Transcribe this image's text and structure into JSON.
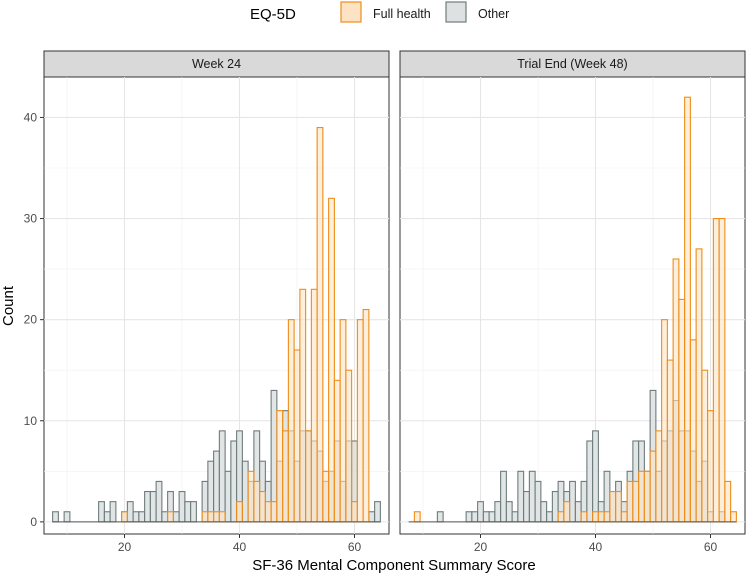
{
  "chart_data": {
    "type": "histogram",
    "xlabel": "SF-36 Mental Component Summary Score",
    "ylabel": "Count",
    "xlim": [
      6,
      66
    ],
    "ylim": [
      -1.2,
      44
    ],
    "xticks": [
      20,
      40,
      60
    ],
    "yticks": [
      0,
      10,
      20,
      30,
      40
    ],
    "bin_width": 1,
    "legend": {
      "title": "EQ-5D",
      "position": "top",
      "entries": [
        {
          "label": "Full health",
          "fill": "#fde3c4",
          "stroke": "#ee8e1a"
        },
        {
          "label": "Other",
          "fill": "#dde1e1",
          "stroke": "#6e7c7c"
        }
      ]
    },
    "facets": [
      {
        "title": "Week 24",
        "series": [
          {
            "name": "Full health",
            "bins": [
              8,
              9,
              10,
              11,
              12,
              13,
              14,
              15,
              16,
              17,
              18,
              19,
              20,
              21,
              22,
              23,
              24,
              25,
              26,
              27,
              28,
              29,
              30,
              31,
              32,
              33,
              34,
              35,
              36,
              37,
              38,
              39,
              40,
              41,
              42,
              43,
              44,
              45,
              46,
              47,
              48,
              49,
              50,
              51,
              52,
              53,
              54,
              55,
              56,
              57,
              58,
              59,
              60,
              61,
              62,
              63,
              64
            ],
            "values": [
              0,
              0,
              0,
              0,
              0,
              0,
              0,
              0,
              0,
              0,
              0,
              0,
              1,
              0,
              0,
              0,
              0,
              0,
              0,
              0,
              1,
              0,
              0,
              0,
              0,
              0,
              1,
              1,
              1,
              1,
              0,
              0,
              2,
              0,
              5,
              4,
              3,
              2,
              2,
              11,
              9,
              20,
              17,
              23,
              9,
              23,
              39,
              5,
              32,
              14,
              20,
              15,
              2,
              20,
              21,
              0,
              0
            ]
          },
          {
            "name": "Other",
            "bins": [
              8,
              9,
              10,
              11,
              12,
              13,
              14,
              15,
              16,
              17,
              18,
              19,
              20,
              21,
              22,
              23,
              24,
              25,
              26,
              27,
              28,
              29,
              30,
              31,
              32,
              33,
              34,
              35,
              36,
              37,
              38,
              39,
              40,
              41,
              42,
              43,
              44,
              45,
              46,
              47,
              48,
              49,
              50,
              51,
              52,
              53,
              54,
              55,
              56,
              57,
              58,
              59,
              60,
              61,
              62,
              63,
              64
            ],
            "values": [
              1,
              0,
              1,
              0,
              0,
              0,
              0,
              0,
              2,
              1,
              2,
              0,
              1,
              2,
              1,
              1,
              3,
              3,
              4,
              1,
              3,
              1,
              3,
              2,
              2,
              0,
              4,
              6,
              7,
              9,
              5,
              8,
              9,
              6,
              4,
              9,
              6,
              4,
              13,
              6,
              11,
              9,
              6,
              9,
              9,
              8,
              7,
              4,
              5,
              8,
              4,
              8,
              8,
              0,
              0,
              1,
              2
            ]
          }
        ]
      },
      {
        "title": "Trial End (Week 48)",
        "series": [
          {
            "name": "Full health",
            "bins": [
              8,
              9,
              10,
              11,
              12,
              13,
              14,
              15,
              16,
              17,
              18,
              19,
              20,
              21,
              22,
              23,
              24,
              25,
              26,
              27,
              28,
              29,
              30,
              31,
              32,
              33,
              34,
              35,
              36,
              37,
              38,
              39,
              40,
              41,
              42,
              43,
              44,
              45,
              46,
              47,
              48,
              49,
              50,
              51,
              52,
              53,
              54,
              55,
              56,
              57,
              58,
              59,
              60,
              61,
              62,
              63,
              64
            ],
            "values": [
              0,
              1,
              0,
              0,
              0,
              0,
              0,
              0,
              0,
              0,
              0,
              0,
              0,
              0,
              0,
              0,
              0,
              0,
              0,
              0,
              0,
              0,
              0,
              0,
              0,
              0,
              1,
              2,
              0,
              0,
              1,
              0,
              1,
              1,
              1,
              3,
              3,
              1,
              4,
              4,
              5,
              5,
              7,
              9,
              20,
              16,
              26,
              22,
              42,
              18,
              27,
              15,
              11,
              30,
              30,
              4,
              1
            ]
          },
          {
            "name": "Other",
            "bins": [
              8,
              9,
              10,
              11,
              12,
              13,
              14,
              15,
              16,
              17,
              18,
              19,
              20,
              21,
              22,
              23,
              24,
              25,
              26,
              27,
              28,
              29,
              30,
              31,
              32,
              33,
              34,
              35,
              36,
              37,
              38,
              39,
              40,
              41,
              42,
              43,
              44,
              45,
              46,
              47,
              48,
              49,
              50,
              51,
              52,
              53,
              54,
              55,
              56,
              57,
              58,
              59,
              60,
              61,
              62,
              63,
              64
            ],
            "values": [
              0,
              0,
              0,
              0,
              0,
              1,
              0,
              0,
              0,
              0,
              1,
              1,
              2,
              1,
              1,
              2,
              5,
              2,
              1,
              5,
              3,
              5,
              4,
              2,
              1,
              3,
              4,
              3,
              4,
              2,
              4,
              8,
              9,
              2,
              5,
              3,
              4,
              2,
              5,
              8,
              8,
              5,
              13,
              5,
              8,
              9,
              12,
              9,
              9,
              7,
              4,
              6,
              1,
              0,
              1,
              0,
              0
            ]
          }
        ]
      }
    ]
  }
}
